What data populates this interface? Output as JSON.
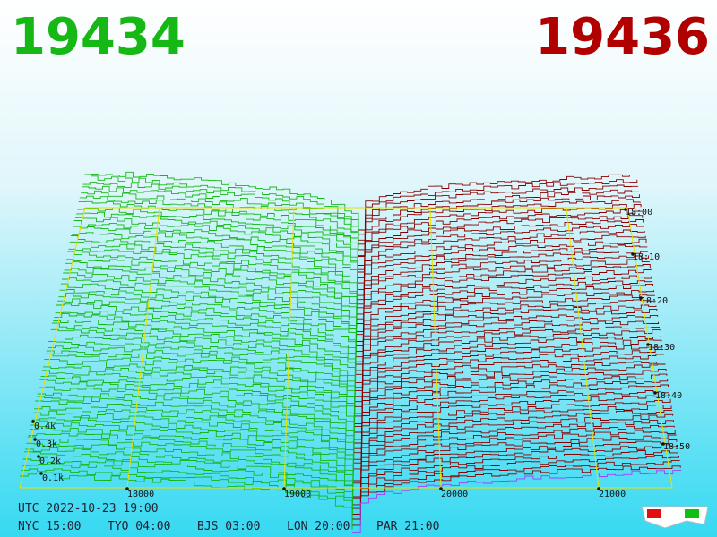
{
  "header": {
    "bid": "19434",
    "ask": "19436"
  },
  "price_axis": {
    "labels": [
      "18000",
      "19000",
      "20000",
      "21000"
    ]
  },
  "time_axis": {
    "labels": [
      "18:00",
      "18:10",
      "18:20",
      "18:30",
      "18:40",
      "18:50"
    ]
  },
  "depth_axis": {
    "labels": [
      "0.1k",
      "0.2k",
      "0.3k",
      "0.4k"
    ]
  },
  "footer": {
    "utc": "UTC 2022-10-23 19:00",
    "clocks": [
      "NYC 15:00",
      "TYO 04:00",
      "BJS 03:00",
      "LON 20:00",
      "PAR 21:00"
    ]
  }
}
